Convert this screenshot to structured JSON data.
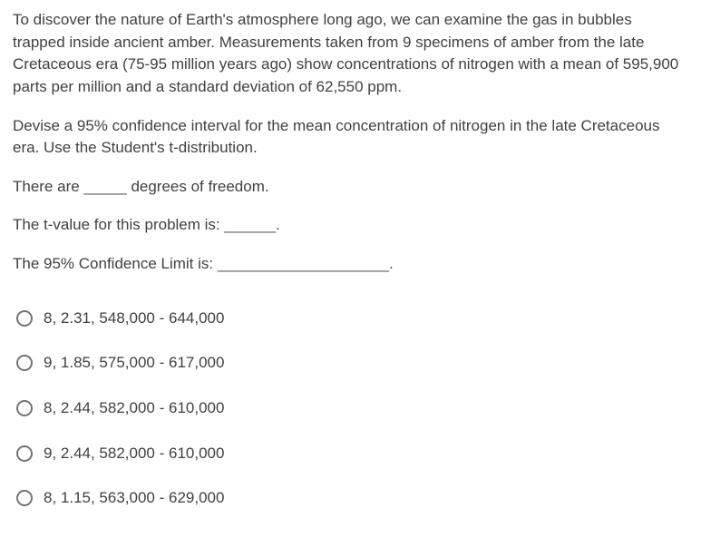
{
  "intro": {
    "para1": "To discover the nature of Earth's atmosphere long ago, we can examine the gas in bubbles trapped inside ancient amber. Measurements taken from 9 specimens of amber from the late Cretaceous era (75-95 million years ago) show concentrations of nitrogen with a mean of 595,900 parts per million and a standard deviation of 62,550 ppm.",
    "para2": "Devise a 95% confidence interval for the mean concentration of nitrogen in the late Cretaceous era. Use the Student's t-distribution."
  },
  "fills": {
    "line1_a": "There are ",
    "line1_blank": "_____",
    "line1_b": " degrees of freedom.",
    "line2_a": "The t-value for this problem is: ",
    "line2_blank": "______",
    "line2_b": ".",
    "line3_a": "The 95% Confidence Limit is: ",
    "line3_blank": "____________________",
    "line3_b": "."
  },
  "opts": [
    "8, 2.31, 548,000 - 644,000",
    "9, 1.85, 575,000 - 617,000",
    "8, 2.44, 582,000 - 610,000",
    "9, 2.44, 582,000 - 610,000",
    "8, 1.15, 563,000 - 629,000"
  ]
}
